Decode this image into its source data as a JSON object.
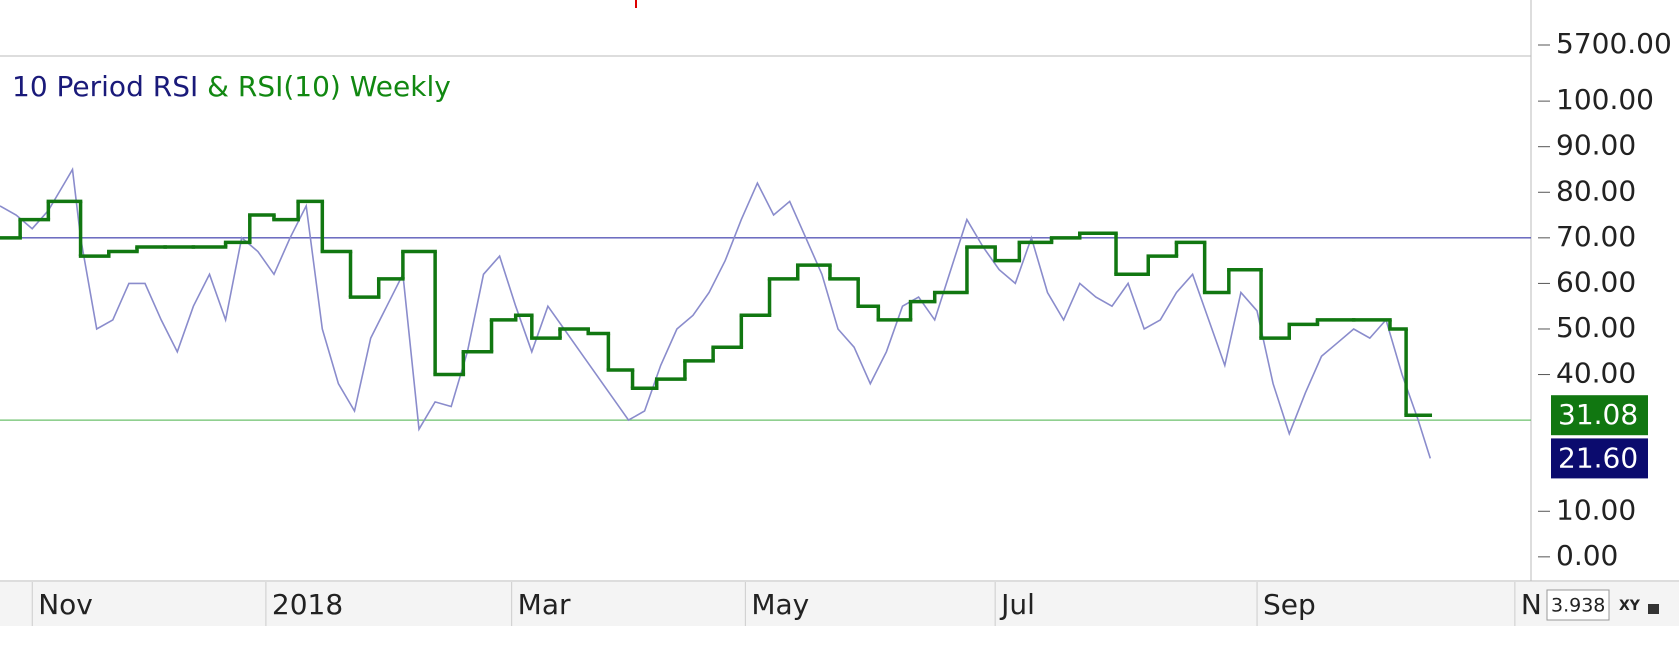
{
  "chart_data": {
    "type": "line",
    "series": [
      {
        "name": "10 Period RSI",
        "color": "#8a8ccc",
        "title_color": "#1a1a7a",
        "style": "line",
        "x": [
          0,
          4,
          8,
          12,
          16,
          18,
          20,
          24,
          28,
          32,
          36,
          40,
          44,
          48,
          52,
          56,
          60,
          64,
          68,
          72,
          76,
          80,
          84,
          88,
          92,
          96,
          100,
          104,
          108,
          112,
          116,
          120,
          124,
          128,
          132,
          136,
          140,
          144,
          148,
          152,
          156,
          160,
          164,
          168,
          172,
          176,
          180,
          184,
          188,
          192,
          196,
          200,
          204,
          208,
          212,
          216,
          220,
          224,
          228,
          232,
          236,
          240,
          244,
          248,
          252,
          256,
          260,
          264,
          268,
          272,
          276,
          280,
          284,
          288,
          292,
          296,
          300,
          304,
          308,
          312,
          316,
          320,
          324,
          328,
          332,
          336,
          340,
          344,
          348,
          352,
          355
        ],
        "values": [
          77,
          75,
          72,
          76,
          82,
          85,
          70,
          50,
          52,
          60,
          60,
          52,
          45,
          55,
          62,
          52,
          70,
          67,
          62,
          70,
          77,
          50,
          38,
          32,
          48,
          55,
          62,
          28,
          34,
          33,
          45,
          62,
          66,
          55,
          45,
          55,
          50,
          45,
          40,
          35,
          30,
          32,
          42,
          50,
          53,
          58,
          65,
          74,
          82,
          75,
          78,
          70,
          62,
          50,
          46,
          38,
          45,
          55,
          57,
          52,
          63,
          74,
          68,
          63,
          60,
          70,
          58,
          52,
          60,
          57,
          55,
          60,
          50,
          52,
          58,
          62,
          52,
          42,
          58,
          54,
          38,
          27,
          36,
          44,
          47,
          50,
          48,
          52,
          40,
          30,
          21.6
        ],
        "last_label": {
          "value": 21.6,
          "label": "21.60"
        },
        "label_bg": "#0b0b6e"
      },
      {
        "name": "RSI(10) Weekly",
        "color": "#117711",
        "title_color": "#118811",
        "style": "step",
        "x": [
          0,
          5,
          12,
          20,
          27,
          34,
          41,
          48,
          56,
          62,
          68,
          74,
          80,
          87,
          94,
          100,
          108,
          115,
          122,
          128,
          132,
          139,
          146,
          151,
          157,
          163,
          170,
          177,
          184,
          191,
          198,
          206,
          213,
          218,
          226,
          232,
          240,
          247,
          253,
          261,
          268,
          277,
          285,
          292,
          299,
          305,
          313,
          320,
          327,
          336,
          345,
          349
        ],
        "values": [
          70,
          74,
          78,
          66,
          67,
          68,
          68,
          68,
          69,
          75,
          74,
          78,
          67,
          57,
          61,
          67,
          40,
          45,
          52,
          53,
          48,
          50,
          49,
          41,
          37,
          39,
          43,
          46,
          53,
          61,
          64,
          61,
          55,
          52,
          56,
          58,
          68,
          65,
          69,
          70,
          71,
          62,
          66,
          69,
          58,
          63,
          48,
          51,
          52,
          52,
          50,
          31.08
        ],
        "x_end": 355,
        "last_label": {
          "value": 31.08,
          "label": "31.08"
        },
        "label_bg": "#117711"
      }
    ],
    "title_joiner": "&",
    "hlines": [
      {
        "value": 70,
        "color": "#5a5ab8"
      },
      {
        "value": 30,
        "color": "#6cc06c"
      }
    ],
    "xlim": [
      0,
      380
    ],
    "ylim": [
      -5.3,
      109.9
    ],
    "yticks": [
      {
        "value": 100,
        "label": "100.00"
      },
      {
        "value": 90,
        "label": "90.00"
      },
      {
        "value": 80,
        "label": "80.00"
      },
      {
        "value": 70,
        "label": "70.00"
      },
      {
        "value": 60,
        "label": "60.00"
      },
      {
        "value": 50,
        "label": "50.00"
      },
      {
        "value": 40,
        "label": "40.00"
      },
      {
        "value": 10,
        "label": "10.00"
      },
      {
        "value": 0,
        "label": "0.00"
      }
    ],
    "xticks": [
      {
        "value": 8,
        "label": "Nov"
      },
      {
        "value": 66,
        "label": "2018"
      },
      {
        "value": 127,
        "label": "Mar"
      },
      {
        "value": 185,
        "label": "May"
      },
      {
        "value": 247,
        "label": "Jul"
      },
      {
        "value": 312,
        "label": "Sep"
      },
      {
        "value": 376,
        "label": "N"
      }
    ],
    "upper_pane_label": "5700.00",
    "ui": {
      "zoom": "3.938",
      "mode": "XY"
    }
  }
}
